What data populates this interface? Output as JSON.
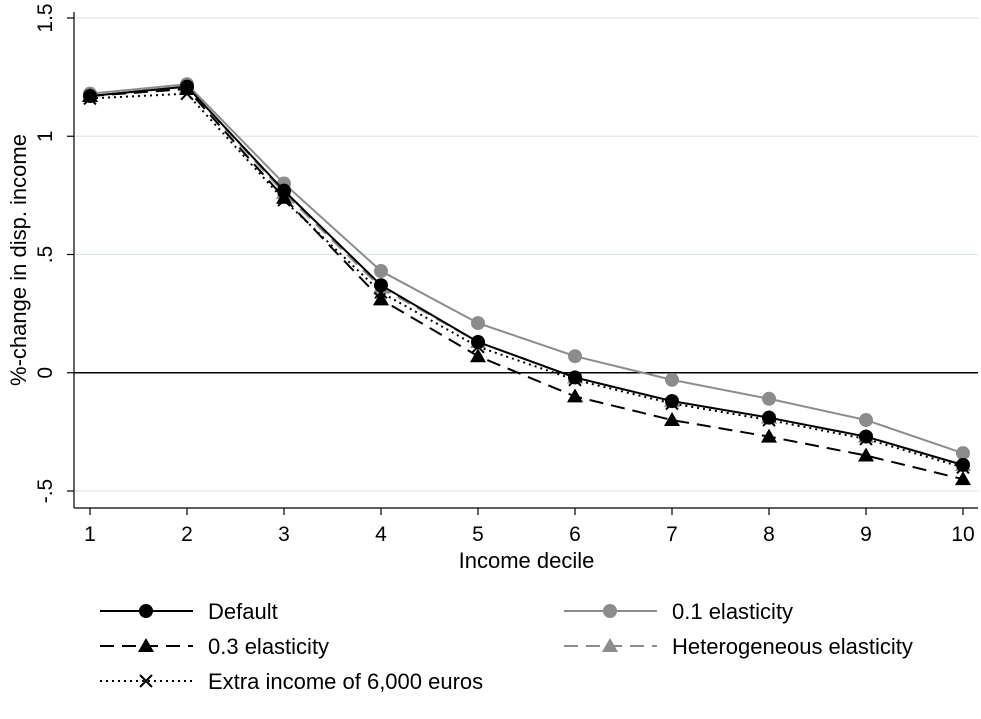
{
  "chart_data": {
    "type": "line",
    "xlabel": "Income decile",
    "ylabel": "%-change in disp. income",
    "xlim": [
      1,
      10
    ],
    "ylim": [
      -0.5,
      1.5
    ],
    "x_ticks": [
      {
        "value": 1,
        "label": "1"
      },
      {
        "value": 2,
        "label": "2"
      },
      {
        "value": 3,
        "label": "3"
      },
      {
        "value": 4,
        "label": "4"
      },
      {
        "value": 5,
        "label": "5"
      },
      {
        "value": 6,
        "label": "6"
      },
      {
        "value": 7,
        "label": "7"
      },
      {
        "value": 8,
        "label": "8"
      },
      {
        "value": 9,
        "label": "9"
      },
      {
        "value": 10,
        "label": "10"
      }
    ],
    "y_ticks": [
      {
        "value": -0.5,
        "label": "-.5"
      },
      {
        "value": 0,
        "label": "0"
      },
      {
        "value": 0.5,
        "label": ".5"
      },
      {
        "value": 1,
        "label": "1"
      },
      {
        "value": 1.5,
        "label": "1.5"
      }
    ],
    "grid": true,
    "zero_line": true,
    "legend_position": "bottom",
    "x": [
      1,
      2,
      3,
      4,
      5,
      6,
      7,
      8,
      9,
      10
    ],
    "series": [
      {
        "name": "Default",
        "color": "#000000",
        "dash": "solid",
        "marker": "circle",
        "values": [
          1.17,
          1.21,
          0.77,
          0.37,
          0.13,
          -0.02,
          -0.12,
          -0.19,
          -0.27,
          -0.39
        ]
      },
      {
        "name": "0.1 elasticity",
        "color": "#8c8c8c",
        "dash": "solid",
        "marker": "circle",
        "values": [
          1.18,
          1.22,
          0.8,
          0.43,
          0.21,
          0.07,
          -0.03,
          -0.11,
          -0.2,
          -0.34
        ]
      },
      {
        "name": "0.3 elasticity",
        "color": "#000000",
        "dash": "dashed",
        "marker": "triangle",
        "values": [
          1.17,
          1.2,
          0.74,
          0.31,
          0.07,
          -0.1,
          -0.2,
          -0.27,
          -0.35,
          -0.45
        ]
      },
      {
        "name": "Heterogeneous elasticity",
        "color": "#8c8c8c",
        "dash": "dashed",
        "marker": "triangle",
        "values": [
          1.17,
          1.21,
          0.76,
          0.36,
          0.13,
          -0.02,
          -0.12,
          -0.19,
          -0.27,
          -0.39
        ]
      },
      {
        "name": "Extra income of 6,000 euros",
        "color": "#000000",
        "dash": "dotted",
        "marker": "x",
        "values": [
          1.16,
          1.18,
          0.73,
          0.34,
          0.11,
          -0.03,
          -0.13,
          -0.2,
          -0.28,
          -0.4
        ]
      }
    ]
  }
}
